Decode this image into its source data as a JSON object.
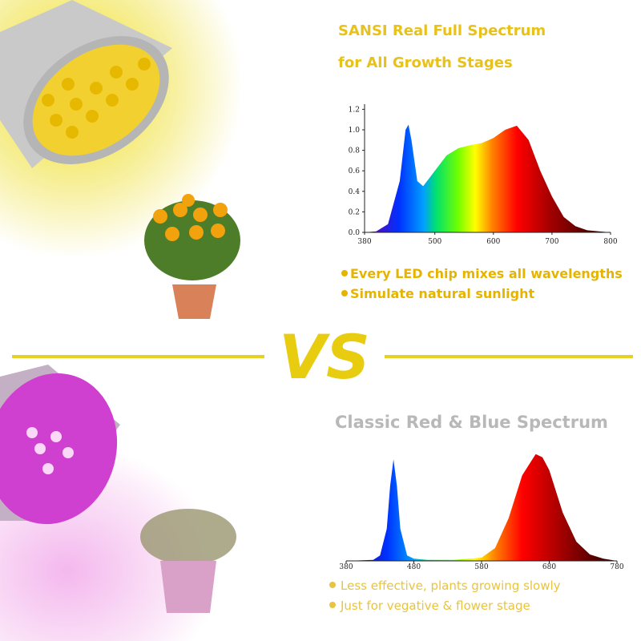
{
  "top_panel": {
    "title_lines": [
      "SANSI Real Full Spectrum",
      "for All Growth Stages"
    ],
    "chart": {
      "type": "area",
      "x": [
        380,
        400,
        420,
        440,
        450,
        455,
        460,
        470,
        480,
        500,
        520,
        540,
        560,
        580,
        600,
        620,
        640,
        660,
        680,
        700,
        720,
        740,
        760,
        780,
        800
      ],
      "values": [
        0,
        0.01,
        0.08,
        0.5,
        1.0,
        1.05,
        0.9,
        0.5,
        0.45,
        0.6,
        0.75,
        0.82,
        0.85,
        0.87,
        0.92,
        1.0,
        1.04,
        0.9,
        0.6,
        0.35,
        0.15,
        0.06,
        0.02,
        0.01,
        0
      ],
      "xlim": [
        380,
        800
      ],
      "ylim": [
        0,
        1.25
      ],
      "xticks": [
        380,
        500,
        600,
        700,
        800
      ],
      "yticks": [
        {
          "value": 0,
          "label": "0.0"
        },
        0.2,
        0.4,
        0.6,
        0.8,
        {
          "value": 1,
          "label": "1.0"
        },
        1.2
      ]
    },
    "bullets": [
      "Every LED chip mixes all wavelengths",
      "Simulate natural sunlight"
    ]
  },
  "divider": "VS",
  "bottom_panel": {
    "title": "Classic Red & Blue Spectrum",
    "chart": {
      "type": "area",
      "x": [
        380,
        420,
        430,
        440,
        445,
        450,
        455,
        460,
        470,
        480,
        500,
        540,
        580,
        600,
        620,
        640,
        660,
        670,
        680,
        700,
        720,
        740,
        760,
        780
      ],
      "values": [
        0,
        0.01,
        0.05,
        0.3,
        0.7,
        0.95,
        0.7,
        0.3,
        0.05,
        0.02,
        0.01,
        0.01,
        0.03,
        0.12,
        0.4,
        0.8,
        1.0,
        0.97,
        0.85,
        0.45,
        0.18,
        0.06,
        0.02,
        0
      ],
      "xlim": [
        380,
        780
      ],
      "ylim": [
        0,
        1.05
      ],
      "xticks": [
        380,
        480,
        580,
        680,
        780
      ]
    },
    "bullets": [
      "Less effective, plants growing slowly",
      "Just for vegative & flower stage"
    ]
  }
}
